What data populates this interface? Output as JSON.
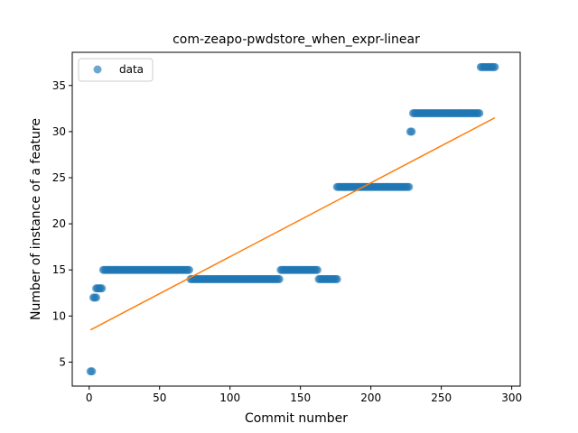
{
  "chart_data": {
    "type": "scatter",
    "title": "com-zeapo-pwdstore_when_expr-linear",
    "xlabel": "Commit number",
    "ylabel": "Number of instance of a feature",
    "xlim": [
      -12,
      306
    ],
    "ylim": [
      2.4,
      38.6
    ],
    "xticks": [
      "0",
      "50",
      "100",
      "150",
      "200",
      "250",
      "300"
    ],
    "yticks": [
      "5",
      "10",
      "15",
      "20",
      "25",
      "30",
      "35"
    ],
    "grid": false,
    "legend": {
      "placement": "top-left",
      "entries": [
        "data"
      ]
    },
    "colors": {
      "data": "#1f77b4",
      "fit": "#ff7f0e"
    },
    "series": [
      {
        "name": "data",
        "kind": "points",
        "segments": [
          {
            "x_start": 1,
            "x_end": 2,
            "y": 4
          },
          {
            "x_start": 3,
            "x_end": 5,
            "y": 12
          },
          {
            "x_start": 5,
            "x_end": 9,
            "y": 13
          },
          {
            "x_start": 10,
            "x_end": 71,
            "y": 15
          },
          {
            "x_start": 72,
            "x_end": 135,
            "y": 14
          },
          {
            "x_start": 136,
            "x_end": 162,
            "y": 15
          },
          {
            "x_start": 163,
            "x_end": 176,
            "y": 14
          },
          {
            "x_start": 176,
            "x_end": 227,
            "y": 24
          },
          {
            "x_start": 228,
            "x_end": 229,
            "y": 30
          },
          {
            "x_start": 230,
            "x_end": 277,
            "y": 32
          },
          {
            "x_start": 278,
            "x_end": 288,
            "y": 37
          }
        ]
      },
      {
        "name": "linear fit",
        "kind": "line",
        "x": [
          1,
          288
        ],
        "y": [
          8.5,
          31.5
        ]
      }
    ]
  }
}
